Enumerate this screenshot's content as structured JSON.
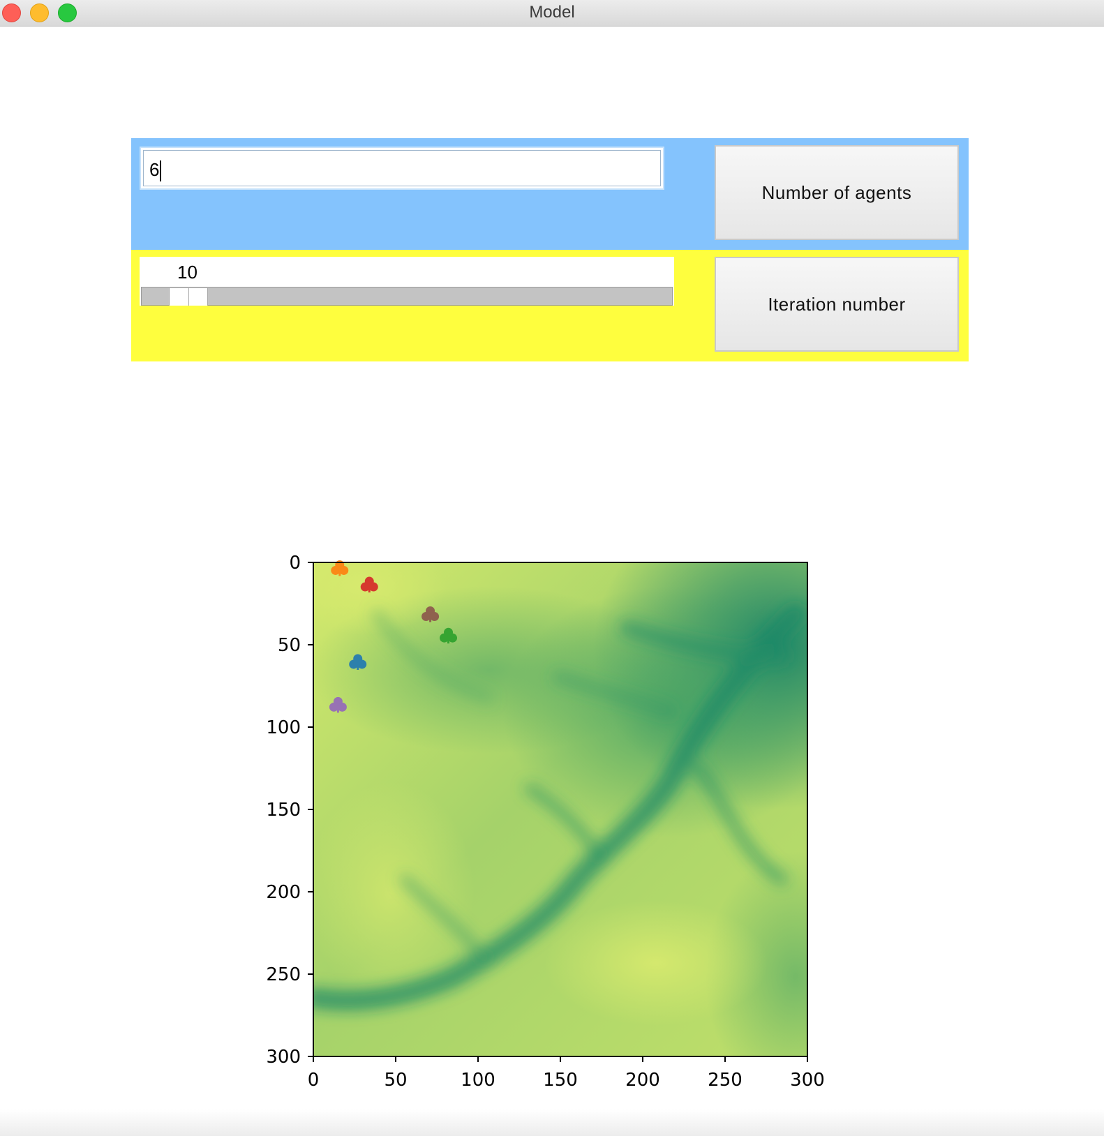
{
  "window": {
    "title": "Model"
  },
  "controls": {
    "agents_input_value": "6",
    "agents_button_label": "Number of agents",
    "iteration_scale_value": "10",
    "iteration_scale_fraction": 0.05,
    "iteration_button_label": "Iteration number",
    "colors": {
      "top_panel": "#84c3fd",
      "bottom_panel": "#fefe3e"
    }
  },
  "chart_data": {
    "type": "heatmap",
    "title": "",
    "xlabel": "",
    "ylabel": "",
    "xlim": [
      0,
      300
    ],
    "ylim": [
      300,
      0
    ],
    "x_ticks": [
      "0",
      "50",
      "100",
      "150",
      "200",
      "250",
      "300"
    ],
    "y_ticks": [
      "0",
      "50",
      "100",
      "150",
      "200",
      "250",
      "300"
    ],
    "colormap": "summer_r",
    "series": [
      {
        "x": 27,
        "y": 61,
        "color": "#1f77b4"
      },
      {
        "x": 16,
        "y": 4,
        "color": "#ff7f0e"
      },
      {
        "x": 82,
        "y": 45,
        "color": "#2ca02c"
      },
      {
        "x": 34,
        "y": 14,
        "color": "#d62728"
      },
      {
        "x": 15,
        "y": 87,
        "color": "#9467bd"
      },
      {
        "x": 71,
        "y": 32,
        "color": "#8c564b"
      }
    ]
  }
}
